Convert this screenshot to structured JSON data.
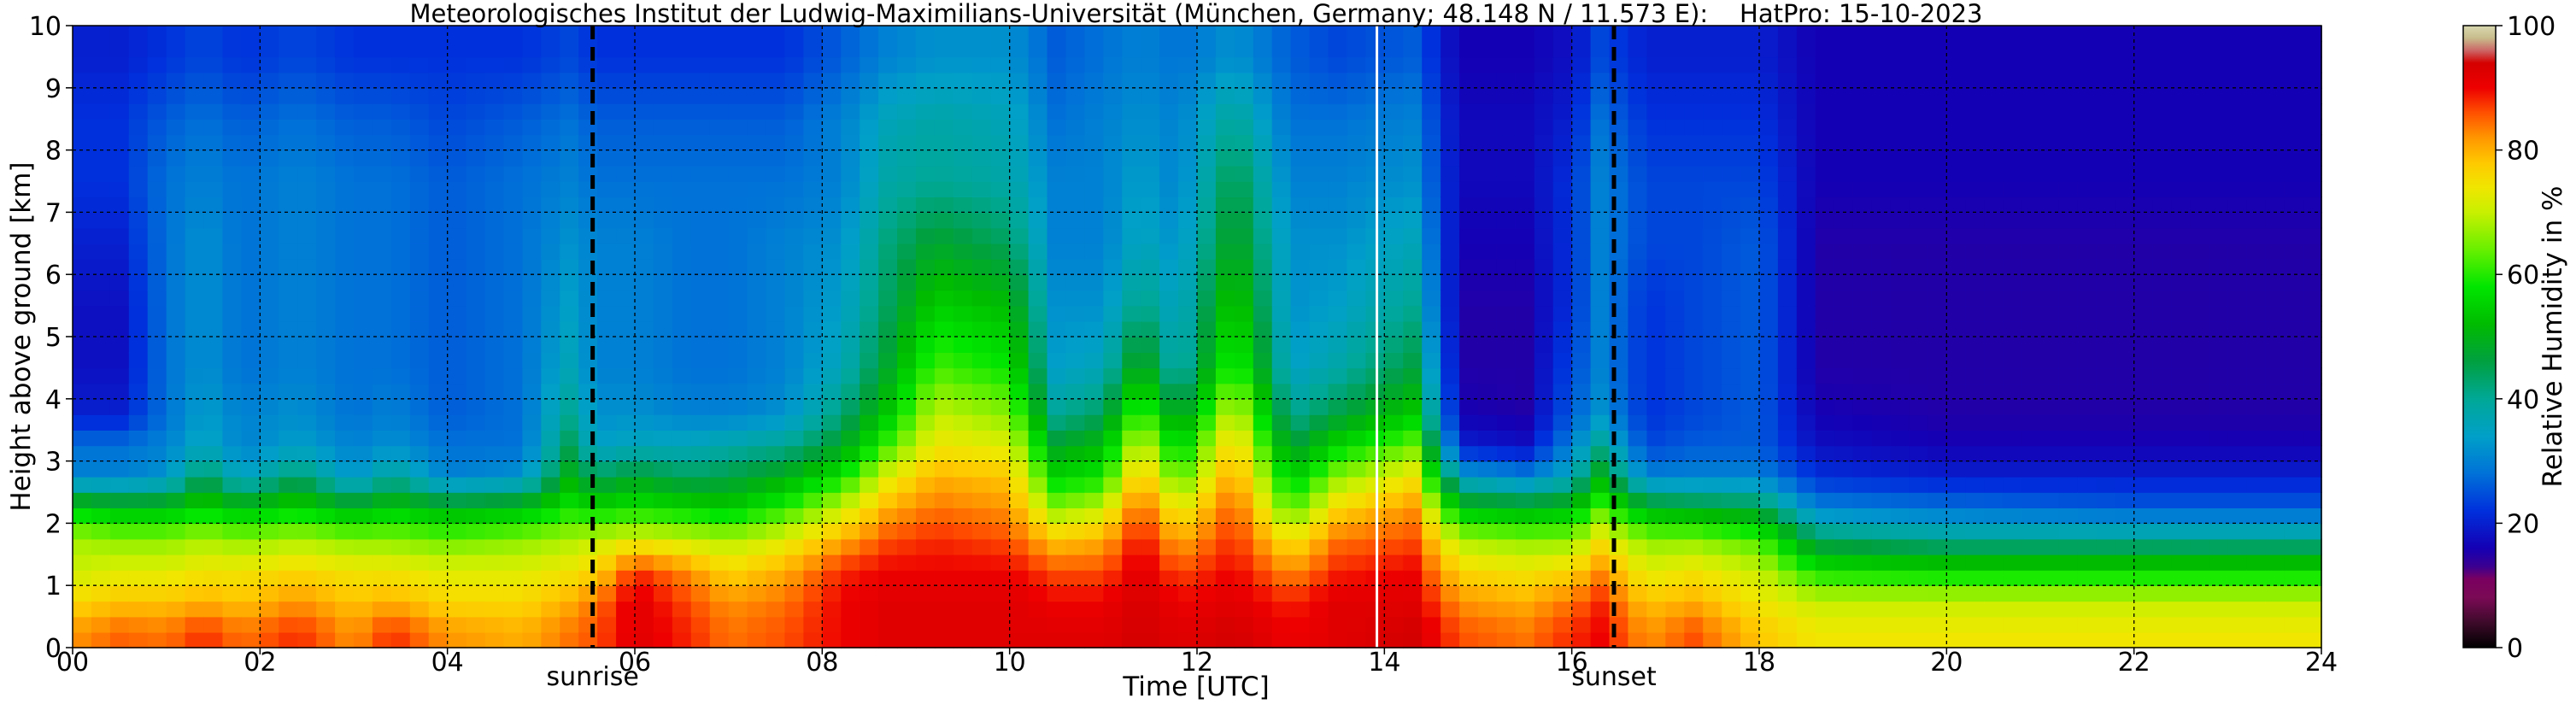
{
  "chart_data": {
    "type": "heatmap",
    "title": "Meteorologisches Institut der Ludwig-Maximilians-Universität (München, Germany; 48.148 N / 11.573 E):    HatPro: 15-10-2023",
    "xlabel": "Time [UTC]",
    "ylabel": "Height above ground [km]",
    "xlim": [
      0,
      24
    ],
    "ylim": [
      0,
      10
    ],
    "x_ticks": [
      "00",
      "02",
      "04",
      "06",
      "08",
      "10",
      "12",
      "14",
      "16",
      "18",
      "20",
      "22",
      "24"
    ],
    "y_ticks": [
      "0",
      "1",
      "2",
      "3",
      "4",
      "5",
      "6",
      "7",
      "8",
      "9",
      "10"
    ],
    "grid": true,
    "colorbar": {
      "label": "Relative Humidity in %",
      "range": [
        0,
        100
      ],
      "ticks": [
        "0",
        "20",
        "40",
        "60",
        "80",
        "100"
      ]
    },
    "annotations": [
      {
        "label": "sunrise",
        "x": 5.55
      },
      {
        "label": "sunset",
        "x": 16.45
      }
    ],
    "missing_data_times": [
      13.92
    ],
    "profile_heights_km": [
      0.25,
      0.75,
      1.25,
      1.75,
      2.25,
      2.75,
      3.25,
      3.75,
      4.5,
      5.5,
      6.5,
      7.5,
      8.5,
      9.5
    ],
    "profiles": [
      {
        "t": 0.0,
        "rh": [
          82,
          76,
          70,
          68,
          55,
          30,
          28,
          20,
          18,
          18,
          20,
          22,
          22,
          20
        ]
      },
      {
        "t": 0.5,
        "rh": [
          85,
          78,
          72,
          66,
          52,
          30,
          28,
          20,
          18,
          18,
          20,
          22,
          22,
          20
        ]
      },
      {
        "t": 1.0,
        "rh": [
          84,
          78,
          72,
          66,
          52,
          32,
          30,
          28,
          28,
          28,
          28,
          28,
          26,
          22
        ]
      },
      {
        "t": 1.4,
        "rh": [
          88,
          80,
          74,
          68,
          56,
          45,
          36,
          34,
          32,
          32,
          32,
          30,
          28,
          24
        ]
      },
      {
        "t": 1.8,
        "rh": [
          84,
          78,
          74,
          66,
          52,
          34,
          30,
          30,
          28,
          28,
          28,
          28,
          26,
          22
        ]
      },
      {
        "t": 2.4,
        "rh": [
          88,
          82,
          76,
          68,
          56,
          44,
          34,
          32,
          30,
          30,
          30,
          30,
          28,
          24
        ]
      },
      {
        "t": 3.0,
        "rh": [
          82,
          78,
          74,
          66,
          50,
          32,
          30,
          28,
          28,
          28,
          28,
          28,
          26,
          22
        ]
      },
      {
        "t": 3.4,
        "rh": [
          88,
          80,
          74,
          66,
          54,
          40,
          32,
          30,
          28,
          28,
          28,
          28,
          26,
          22
        ]
      },
      {
        "t": 4.0,
        "rh": [
          82,
          76,
          72,
          64,
          50,
          30,
          28,
          26,
          26,
          26,
          26,
          26,
          24,
          22
        ]
      },
      {
        "t": 4.8,
        "rh": [
          80,
          76,
          72,
          66,
          52,
          32,
          28,
          28,
          28,
          28,
          28,
          28,
          26,
          22
        ]
      },
      {
        "t": 5.3,
        "rh": [
          84,
          80,
          74,
          68,
          58,
          50,
          44,
          40,
          36,
          34,
          32,
          30,
          28,
          24
        ]
      },
      {
        "t": 5.6,
        "rh": [
          86,
          84,
          76,
          70,
          56,
          44,
          34,
          32,
          30,
          30,
          30,
          28,
          26,
          22
        ]
      },
      {
        "t": 6.0,
        "rh": [
          92,
          92,
          88,
          72,
          58,
          48,
          36,
          32,
          30,
          30,
          30,
          28,
          26,
          22
        ]
      },
      {
        "t": 6.6,
        "rh": [
          88,
          86,
          82,
          70,
          56,
          44,
          36,
          30,
          28,
          28,
          28,
          28,
          26,
          22
        ]
      },
      {
        "t": 7.0,
        "rh": [
          84,
          82,
          76,
          68,
          54,
          46,
          38,
          30,
          28,
          28,
          28,
          28,
          26,
          22
        ]
      },
      {
        "t": 7.6,
        "rh": [
          86,
          84,
          80,
          72,
          60,
          50,
          40,
          32,
          30,
          30,
          30,
          28,
          26,
          22
        ]
      },
      {
        "t": 8.2,
        "rh": [
          90,
          90,
          88,
          80,
          70,
          58,
          48,
          42,
          36,
          34,
          32,
          30,
          30,
          26
        ]
      },
      {
        "t": 8.7,
        "rh": [
          92,
          92,
          90,
          86,
          80,
          72,
          62,
          54,
          48,
          44,
          42,
          38,
          36,
          30
        ]
      },
      {
        "t": 9.2,
        "rh": [
          92,
          92,
          90,
          88,
          84,
          80,
          74,
          70,
          62,
          55,
          48,
          40,
          38,
          32
        ]
      },
      {
        "t": 10.0,
        "rh": [
          92,
          92,
          90,
          86,
          82,
          78,
          72,
          66,
          58,
          52,
          44,
          38,
          36,
          32
        ]
      },
      {
        "t": 10.5,
        "rh": [
          92,
          90,
          86,
          78,
          66,
          56,
          48,
          40,
          34,
          32,
          30,
          30,
          28,
          26
        ]
      },
      {
        "t": 11.0,
        "rh": [
          92,
          90,
          86,
          80,
          70,
          58,
          52,
          44,
          36,
          32,
          30,
          30,
          30,
          28
        ]
      },
      {
        "t": 11.4,
        "rh": [
          94,
          94,
          92,
          90,
          86,
          80,
          72,
          64,
          52,
          42,
          36,
          34,
          32,
          30
        ]
      },
      {
        "t": 11.8,
        "rh": [
          92,
          90,
          86,
          80,
          72,
          62,
          54,
          46,
          36,
          34,
          32,
          30,
          30,
          28
        ]
      },
      {
        "t": 12.4,
        "rh": [
          94,
          92,
          90,
          88,
          86,
          82,
          78,
          72,
          62,
          56,
          50,
          46,
          40,
          32
        ]
      },
      {
        "t": 13.0,
        "rh": [
          90,
          88,
          82,
          74,
          62,
          54,
          46,
          40,
          34,
          32,
          32,
          30,
          28,
          26
        ]
      },
      {
        "t": 13.5,
        "rh": [
          92,
          92,
          88,
          84,
          76,
          66,
          56,
          46,
          38,
          34,
          32,
          30,
          28,
          24
        ]
      },
      {
        "t": 14.3,
        "rh": [
          94,
          92,
          90,
          86,
          82,
          74,
          64,
          54,
          46,
          40,
          36,
          32,
          30,
          26
        ]
      },
      {
        "t": 14.8,
        "rh": [
          86,
          82,
          76,
          68,
          52,
          34,
          20,
          16,
          15,
          15,
          16,
          17,
          17,
          16
        ]
      },
      {
        "t": 15.5,
        "rh": [
          84,
          80,
          74,
          66,
          50,
          30,
          18,
          15,
          15,
          15,
          16,
          17,
          17,
          16
        ]
      },
      {
        "t": 16.0,
        "rh": [
          88,
          84,
          76,
          66,
          52,
          36,
          30,
          26,
          24,
          22,
          22,
          22,
          20,
          18
        ]
      },
      {
        "t": 16.3,
        "rh": [
          90,
          88,
          82,
          74,
          62,
          50,
          40,
          32,
          30,
          30,
          30,
          30,
          28,
          24
        ]
      },
      {
        "t": 16.8,
        "rh": [
          82,
          78,
          72,
          66,
          50,
          30,
          24,
          22,
          22,
          22,
          24,
          24,
          22,
          20
        ]
      },
      {
        "t": 17.3,
        "rh": [
          86,
          80,
          74,
          66,
          48,
          30,
          26,
          24,
          24,
          24,
          24,
          24,
          22,
          20
        ]
      },
      {
        "t": 18.0,
        "rh": [
          78,
          74,
          70,
          62,
          46,
          30,
          26,
          26,
          26,
          26,
          26,
          24,
          22,
          20
        ]
      },
      {
        "t": 18.6,
        "rh": [
          74,
          70,
          58,
          44,
          30,
          22,
          18,
          16,
          15,
          15,
          15,
          16,
          16,
          16
        ]
      },
      {
        "t": 20.0,
        "rh": [
          74,
          70,
          56,
          40,
          28,
          20,
          16,
          15,
          15,
          15,
          15,
          16,
          16,
          16
        ]
      },
      {
        "t": 22.0,
        "rh": [
          74,
          70,
          56,
          40,
          26,
          20,
          16,
          15,
          15,
          15,
          15,
          16,
          16,
          16
        ]
      },
      {
        "t": 24.0,
        "rh": [
          74,
          70,
          56,
          40,
          26,
          20,
          16,
          15,
          15,
          15,
          15,
          16,
          16,
          16
        ]
      }
    ]
  }
}
